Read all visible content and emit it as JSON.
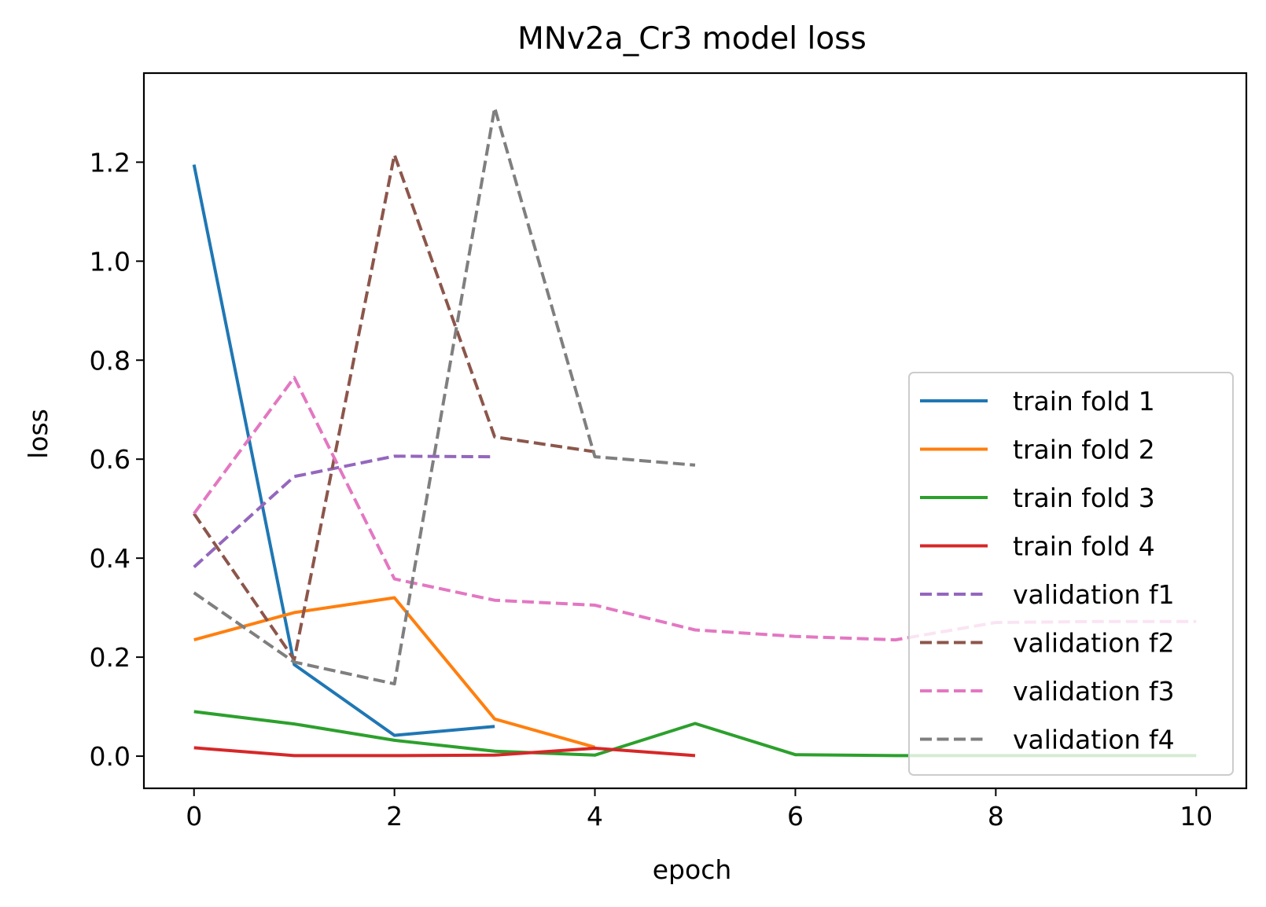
{
  "chart_data": {
    "type": "line",
    "title": "MNv2a_Cr3 model loss",
    "xlabel": "epoch",
    "ylabel": "loss",
    "xlim": [
      -0.5,
      10.5
    ],
    "ylim": [
      -0.065,
      1.38
    ],
    "xticks": [
      0,
      2,
      4,
      6,
      8,
      10
    ],
    "yticks": [
      0.0,
      0.2,
      0.4,
      0.6,
      0.8,
      1.0,
      1.2
    ],
    "xtick_labels": [
      "0",
      "2",
      "4",
      "6",
      "8",
      "10"
    ],
    "ytick_labels": [
      "0.0",
      "0.2",
      "0.4",
      "0.6",
      "0.8",
      "1.0",
      "1.2"
    ],
    "grid": false,
    "legend_position": "lower right",
    "series": [
      {
        "name": "train fold 1",
        "color": "#1f77b4",
        "dash": "solid",
        "x": [
          0,
          1,
          2,
          3
        ],
        "y": [
          1.195,
          0.185,
          0.042,
          0.06
        ]
      },
      {
        "name": "train fold 2",
        "color": "#ff7f0e",
        "dash": "solid",
        "x": [
          0,
          1,
          2,
          3,
          4
        ],
        "y": [
          0.235,
          0.29,
          0.32,
          0.075,
          0.018
        ]
      },
      {
        "name": "train fold 3",
        "color": "#2ca02c",
        "dash": "solid",
        "x": [
          0,
          1,
          2,
          3,
          4,
          5,
          6,
          7,
          8,
          9,
          10
        ],
        "y": [
          0.09,
          0.065,
          0.032,
          0.01,
          0.002,
          0.066,
          0.003,
          0.001,
          0.001,
          0.001,
          0.001
        ]
      },
      {
        "name": "train fold 4",
        "color": "#d62728",
        "dash": "solid",
        "x": [
          0,
          1,
          2,
          3,
          4,
          5
        ],
        "y": [
          0.017,
          0.001,
          0.001,
          0.002,
          0.016,
          0.001
        ]
      },
      {
        "name": "validation f1",
        "color": "#9467bd",
        "dash": "dashed",
        "x": [
          0,
          1,
          2,
          3
        ],
        "y": [
          0.382,
          0.565,
          0.606,
          0.605
        ]
      },
      {
        "name": "validation f2",
        "color": "#8c564b",
        "dash": "dashed",
        "x": [
          0,
          1,
          2,
          3,
          4
        ],
        "y": [
          0.49,
          0.195,
          1.215,
          0.645,
          0.615
        ]
      },
      {
        "name": "validation f3",
        "color": "#e377c2",
        "dash": "dashed",
        "x": [
          0,
          1,
          2,
          3,
          4,
          5,
          6,
          7,
          8,
          9,
          10
        ],
        "y": [
          0.49,
          0.765,
          0.358,
          0.315,
          0.305,
          0.255,
          0.242,
          0.235,
          0.27,
          0.272,
          0.272
        ]
      },
      {
        "name": "validation f4",
        "color": "#7f7f7f",
        "dash": "dashed",
        "x": [
          0,
          1,
          2,
          3,
          4,
          5
        ],
        "y": [
          0.33,
          0.19,
          0.146,
          1.31,
          0.605,
          0.588
        ]
      }
    ]
  }
}
